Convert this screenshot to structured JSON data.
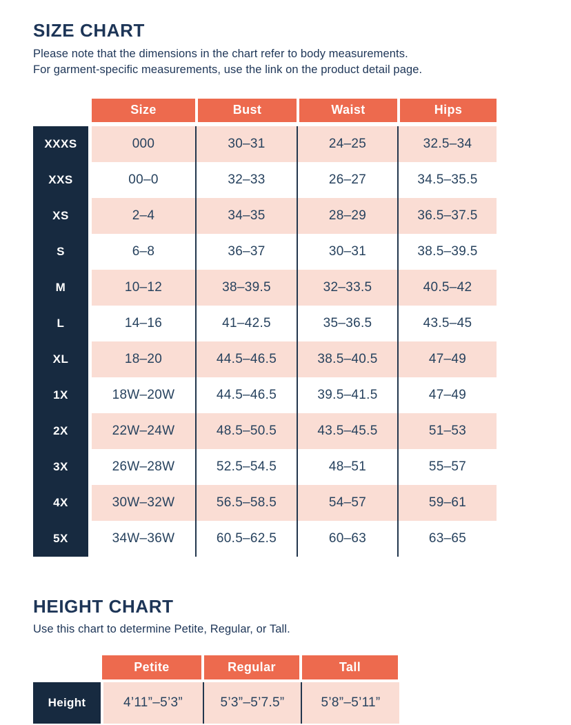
{
  "size_chart": {
    "title": "SIZE CHART",
    "subtitle_line1": "Please note that the dimensions in the chart refer to body measurements.",
    "subtitle_line2": "For garment-specific measurements, use the link on the product detail page.",
    "columns": [
      "Size",
      "Bust",
      "Waist",
      "Hips"
    ],
    "rows": [
      {
        "label": "XXXS",
        "values": [
          "000",
          "30–31",
          "24–25",
          "32.5–34"
        ]
      },
      {
        "label": "XXS",
        "values": [
          "00–0",
          "32–33",
          "26–27",
          "34.5–35.5"
        ]
      },
      {
        "label": "XS",
        "values": [
          "2–4",
          "34–35",
          "28–29",
          "36.5–37.5"
        ]
      },
      {
        "label": "S",
        "values": [
          "6–8",
          "36–37",
          "30–31",
          "38.5–39.5"
        ]
      },
      {
        "label": "M",
        "values": [
          "10–12",
          "38–39.5",
          "32–33.5",
          "40.5–42"
        ]
      },
      {
        "label": "L",
        "values": [
          "14–16",
          "41–42.5",
          "35–36.5",
          "43.5–45"
        ]
      },
      {
        "label": "XL",
        "values": [
          "18–20",
          "44.5–46.5",
          "38.5–40.5",
          "47–49"
        ]
      },
      {
        "label": "1X",
        "values": [
          "18W–20W",
          "44.5–46.5",
          "39.5–41.5",
          "47–49"
        ]
      },
      {
        "label": "2X",
        "values": [
          "22W–24W",
          "48.5–50.5",
          "43.5–45.5",
          "51–53"
        ]
      },
      {
        "label": "3X",
        "values": [
          "26W–28W",
          "52.5–54.5",
          "48–51",
          "55–57"
        ]
      },
      {
        "label": "4X",
        "values": [
          "30W–32W",
          "56.5–58.5",
          "54–57",
          "59–61"
        ]
      },
      {
        "label": "5X",
        "values": [
          "34W–36W",
          "60.5–62.5",
          "60–63",
          "63–65"
        ]
      }
    ]
  },
  "height_chart": {
    "title": "HEIGHT CHART",
    "subtitle": "Use this chart to determine Petite, Regular, or Tall.",
    "columns": [
      "Petite",
      "Regular",
      "Tall"
    ],
    "row_label": "Height",
    "values": [
      "4’11”–5’3”",
      "5’3”–5’7.5”",
      "5’8”–5’11”"
    ]
  },
  "colors": {
    "accent_orange": "#ED6A4E",
    "navy_block": "#172A40",
    "pink_row": "#FADDD4",
    "text_navy": "#1D3557",
    "cell_text_navy": "#27425E"
  }
}
